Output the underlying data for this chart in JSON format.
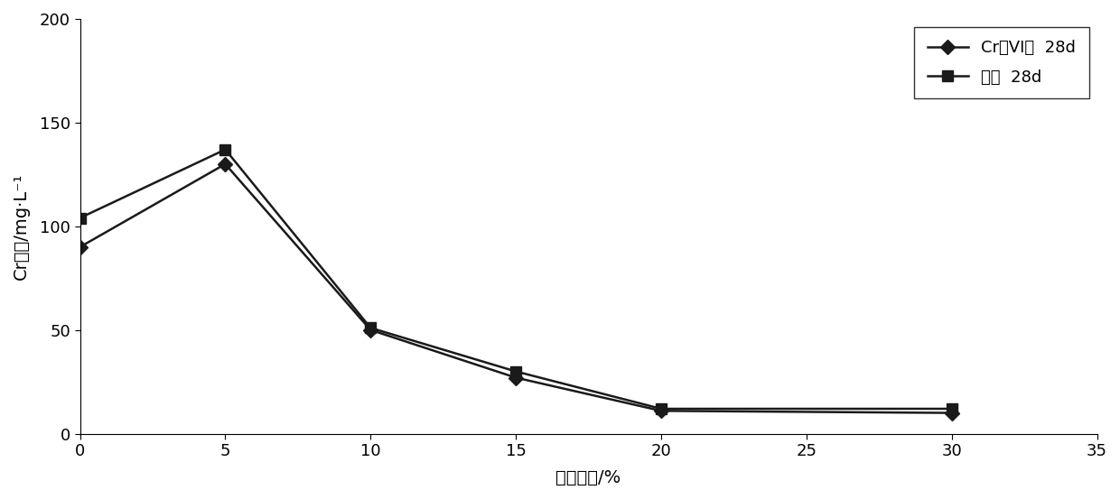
{
  "x": [
    0,
    5,
    10,
    15,
    20,
    30
  ],
  "y_cr6": [
    90,
    130,
    50,
    27,
    11,
    10
  ],
  "y_total": [
    104,
    137,
    51,
    30,
    12,
    12
  ],
  "xlabel": "水泥掺量/%",
  "ylabel": "Cr浓度/mg·L⁻¹",
  "xlim": [
    0,
    35
  ],
  "ylim": [
    0,
    200
  ],
  "xticks": [
    0,
    5,
    10,
    15,
    20,
    25,
    30,
    35
  ],
  "yticks": [
    0,
    50,
    100,
    150,
    200
  ],
  "legend_cr6": "Cr（VI）  28d",
  "legend_total": "总铬  28d",
  "line_color": "#1a1a1a",
  "marker_cr6": "D",
  "marker_total": "s",
  "markersize": 8,
  "linewidth": 1.8,
  "label_fontsize": 14,
  "tick_fontsize": 13,
  "legend_fontsize": 13,
  "figsize": [
    12.4,
    5.53
  ],
  "dpi": 100
}
